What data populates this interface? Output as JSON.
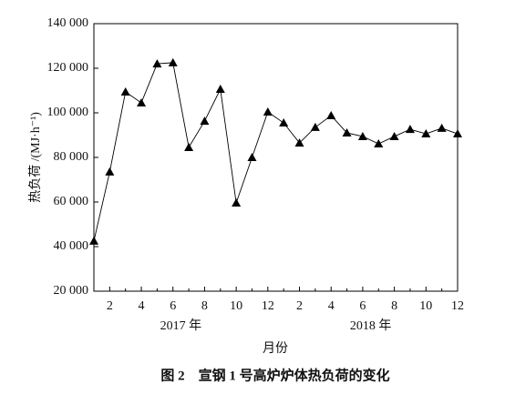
{
  "chart_data": {
    "type": "line",
    "caption": "图 2　宣钢 1 号高炉炉体热负荷的变化",
    "x_label": "月份",
    "y_label": "热负荷 /(MJ·h⁻¹)",
    "categories": [
      null,
      "2",
      null,
      "4",
      null,
      "6",
      null,
      "8",
      null,
      "10",
      null,
      "12",
      null,
      "2",
      null,
      "4",
      null,
      "6",
      null,
      "8",
      null,
      "10",
      null,
      "12"
    ],
    "x_groups": [
      "2017 年",
      "2018 年"
    ],
    "series": [
      {
        "name": "热负荷",
        "color": "#000000",
        "values": [
          42500,
          73500,
          109400,
          104500,
          122000,
          122500,
          84500,
          96300,
          110600,
          59600,
          80000,
          100400,
          95500,
          86500,
          93500,
          98800,
          91000,
          89400,
          86100,
          89400,
          92600,
          90600,
          93100,
          90600
        ]
      }
    ],
    "ylim": [
      20000,
      140000
    ],
    "yticks": [
      {
        "value": 20000,
        "label": "20 000"
      },
      {
        "value": 40000,
        "label": "40 000"
      },
      {
        "value": 60000,
        "label": "60 000"
      },
      {
        "value": 80000,
        "label": "80 000"
      },
      {
        "value": 100000,
        "label": "100 000"
      },
      {
        "value": 120000,
        "label": "120 000"
      },
      {
        "value": 140000,
        "label": "140 000"
      }
    ],
    "marker": "triangle"
  }
}
